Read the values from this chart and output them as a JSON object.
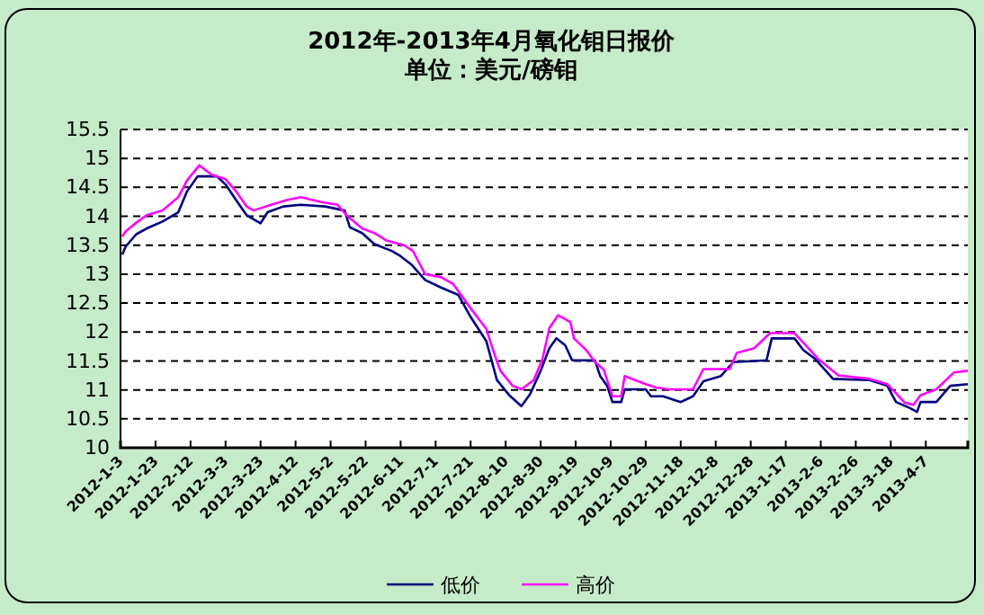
{
  "chart_data": {
    "type": "line",
    "title": "2012年-2013年4月氧化钼日报价",
    "subtitle": "单位：美元/磅钼",
    "xlim": [
      "2012-01-03",
      "2013-05-01"
    ],
    "xticks": [
      {
        "value": "2012-01-03",
        "label": "2012-1-3"
      },
      {
        "value": "2012-01-23",
        "label": "2012-1-23"
      },
      {
        "value": "2012-02-12",
        "label": "2012-2-12"
      },
      {
        "value": "2012-03-03",
        "label": "2012-3-3"
      },
      {
        "value": "2012-03-23",
        "label": "2012-3-23"
      },
      {
        "value": "2012-04-12",
        "label": "2012-4-12"
      },
      {
        "value": "2012-05-02",
        "label": "2012-5-2"
      },
      {
        "value": "2012-05-22",
        "label": "2012-5-22"
      },
      {
        "value": "2012-06-11",
        "label": "2012-6-11"
      },
      {
        "value": "2012-07-01",
        "label": "2012-7-1"
      },
      {
        "value": "2012-07-21",
        "label": "2012-7-21"
      },
      {
        "value": "2012-08-10",
        "label": "2012-8-10"
      },
      {
        "value": "2012-08-30",
        "label": "2012-8-30"
      },
      {
        "value": "2012-09-19",
        "label": "2012-9-19"
      },
      {
        "value": "2012-10-09",
        "label": "2012-10-9"
      },
      {
        "value": "2012-10-29",
        "label": "2012-10-29"
      },
      {
        "value": "2012-11-18",
        "label": "2012-11-18"
      },
      {
        "value": "2012-12-08",
        "label": "2012-12-8"
      },
      {
        "value": "2012-12-28",
        "label": "2012-12-28"
      },
      {
        "value": "2013-01-17",
        "label": "2013-1-17"
      },
      {
        "value": "2013-02-06",
        "label": "2013-2-6"
      },
      {
        "value": "2013-02-26",
        "label": "2013-2-26"
      },
      {
        "value": "2013-03-18",
        "label": "2013-3-18"
      },
      {
        "value": "2013-04-07",
        "label": "2013-4-7"
      }
    ],
    "ylim": [
      10,
      15.5
    ],
    "yticks": [
      10,
      10.5,
      11,
      11.5,
      12,
      12.5,
      13,
      13.5,
      14,
      14.5,
      15,
      15.5
    ],
    "grid": "y",
    "legend": "bottom",
    "line_style": "solid",
    "marker": "none",
    "series": [
      {
        "name": "低价",
        "color": "#000080",
        "x": [
          "2012-01-04",
          "2012-01-06",
          "2012-01-12",
          "2012-01-18",
          "2012-01-27",
          "2012-02-05",
          "2012-02-10",
          "2012-02-16",
          "2012-02-27",
          "2012-03-03",
          "2012-03-09",
          "2012-03-15",
          "2012-03-23",
          "2012-03-27",
          "2012-04-05",
          "2012-04-15",
          "2012-04-29",
          "2012-05-10",
          "2012-05-13",
          "2012-05-20",
          "2012-05-27",
          "2012-06-06",
          "2012-06-11",
          "2012-06-17",
          "2012-06-25",
          "2012-07-04",
          "2012-07-14",
          "2012-07-21",
          "2012-07-30",
          "2012-08-05",
          "2012-08-12",
          "2012-08-19",
          "2012-08-24",
          "2012-08-30",
          "2012-09-04",
          "2012-09-08",
          "2012-09-13",
          "2012-09-17",
          "2012-09-30",
          "2012-10-03",
          "2012-10-07",
          "2012-10-10",
          "2012-10-15",
          "2012-10-17",
          "2012-10-29",
          "2012-11-01",
          "2012-11-08",
          "2012-11-18",
          "2012-11-25",
          "2012-12-01",
          "2012-12-11",
          "2012-12-18",
          "2013-01-06",
          "2013-01-09",
          "2013-01-22",
          "2013-01-27",
          "2013-02-03",
          "2013-02-13",
          "2013-03-06",
          "2013-03-16",
          "2013-03-21",
          "2013-03-28",
          "2013-04-02",
          "2013-04-04",
          "2013-04-13",
          "2013-04-21",
          "2013-05-01"
        ],
        "values": [
          13.34,
          13.48,
          13.69,
          13.79,
          13.91,
          14.07,
          14.43,
          14.69,
          14.69,
          14.55,
          14.28,
          14.02,
          13.88,
          14.07,
          14.17,
          14.2,
          14.17,
          14.1,
          13.81,
          13.71,
          13.52,
          13.4,
          13.31,
          13.17,
          12.9,
          12.77,
          12.64,
          12.26,
          11.84,
          11.17,
          10.91,
          10.72,
          10.93,
          11.33,
          11.72,
          11.89,
          11.77,
          11.51,
          11.51,
          11.24,
          11.07,
          10.79,
          10.79,
          11.01,
          11.01,
          10.89,
          10.89,
          10.79,
          10.89,
          11.15,
          11.24,
          11.48,
          11.51,
          11.89,
          11.89,
          11.69,
          11.53,
          11.19,
          11.17,
          11.07,
          10.79,
          10.7,
          10.62,
          10.79,
          10.79,
          11.07,
          11.1
        ]
      },
      {
        "name": "高价",
        "color": "#ff00ff",
        "x": [
          "2012-01-04",
          "2012-01-06",
          "2012-01-12",
          "2012-01-18",
          "2012-01-27",
          "2012-02-05",
          "2012-02-10",
          "2012-02-17",
          "2012-02-24",
          "2012-03-03",
          "2012-03-09",
          "2012-03-15",
          "2012-03-19",
          "2012-03-29",
          "2012-04-07",
          "2012-04-15",
          "2012-04-26",
          "2012-05-06",
          "2012-05-11",
          "2012-05-20",
          "2012-05-27",
          "2012-06-03",
          "2012-06-13",
          "2012-06-18",
          "2012-06-25",
          "2012-07-04",
          "2012-07-11",
          "2012-07-21",
          "2012-07-30",
          "2012-08-04",
          "2012-08-07",
          "2012-08-14",
          "2012-08-19",
          "2012-08-26",
          "2012-08-31",
          "2012-09-04",
          "2012-09-09",
          "2012-09-16",
          "2012-09-18",
          "2012-09-25",
          "2012-09-30",
          "2012-10-05",
          "2012-10-10",
          "2012-10-15",
          "2012-10-17",
          "2012-10-29",
          "2012-11-04",
          "2012-11-11",
          "2012-11-25",
          "2012-12-01",
          "2012-12-16",
          "2012-12-20",
          "2012-12-30",
          "2013-01-08",
          "2013-01-22",
          "2013-01-30",
          "2013-02-04",
          "2013-02-16",
          "2013-03-06",
          "2013-03-16",
          "2013-03-26",
          "2013-03-31",
          "2013-04-04",
          "2013-04-13",
          "2013-04-23",
          "2013-05-01"
        ],
        "values": [
          13.65,
          13.74,
          13.89,
          14.02,
          14.1,
          14.33,
          14.62,
          14.88,
          14.72,
          14.64,
          14.43,
          14.17,
          14.1,
          14.2,
          14.28,
          14.33,
          14.25,
          14.2,
          14.02,
          13.79,
          13.71,
          13.58,
          13.5,
          13.4,
          13.0,
          12.95,
          12.83,
          12.41,
          12.05,
          11.58,
          11.33,
          11.07,
          11.01,
          11.17,
          11.53,
          12.07,
          12.29,
          12.17,
          11.89,
          11.69,
          11.48,
          11.35,
          10.89,
          10.89,
          11.24,
          11.1,
          11.04,
          11.01,
          11.01,
          11.36,
          11.36,
          11.64,
          11.72,
          11.98,
          11.98,
          11.72,
          11.55,
          11.25,
          11.19,
          11.1,
          10.78,
          10.74,
          10.91,
          11.01,
          11.3,
          11.33
        ]
      }
    ]
  }
}
